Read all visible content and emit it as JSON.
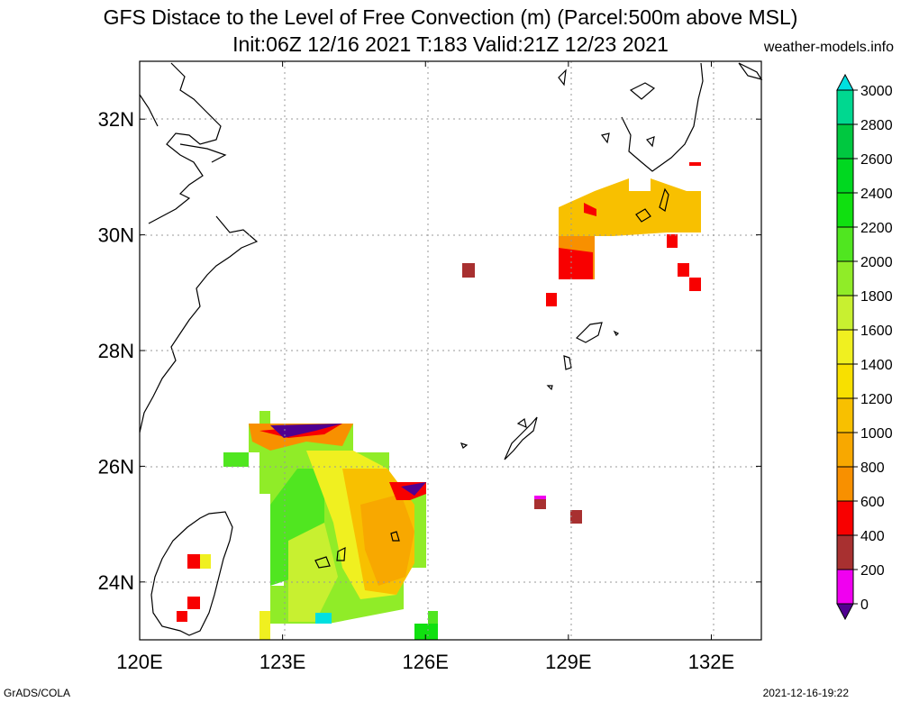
{
  "title": {
    "line1": "GFS Distace to the Level of Free Convection (m) (Parcel:500m above MSL)",
    "line2": "Init:06Z 12/16 2021 T:183 Valid:21Z 12/23 2021"
  },
  "site": "weather-models.info",
  "footer": {
    "left": "GrADS/COLA",
    "right": "2021-12-16-19:22"
  },
  "axes": {
    "lon_ticks": [
      {
        "value": 120,
        "label": "120E"
      },
      {
        "value": 123,
        "label": "123E"
      },
      {
        "value": 126,
        "label": "126E"
      },
      {
        "value": 129,
        "label": "129E"
      },
      {
        "value": 132,
        "label": "132E"
      }
    ],
    "lat_ticks": [
      {
        "value": 24,
        "label": "24N"
      },
      {
        "value": 26,
        "label": "26N"
      },
      {
        "value": 28,
        "label": "28N"
      },
      {
        "value": 30,
        "label": "30N"
      },
      {
        "value": 32,
        "label": "32N"
      }
    ]
  },
  "colorbar": {
    "levels": [
      {
        "label": "3000",
        "color": "#00e0e0"
      },
      {
        "label": "2800",
        "color": "#00d890"
      },
      {
        "label": "2600",
        "color": "#00c840"
      },
      {
        "label": "2400",
        "color": "#00d820"
      },
      {
        "label": "2200",
        "color": "#10e010"
      },
      {
        "label": "2000",
        "color": "#50e620"
      },
      {
        "label": "1800",
        "color": "#90ec28"
      },
      {
        "label": "1600",
        "color": "#c8f030"
      },
      {
        "label": "1400",
        "color": "#f0f020"
      },
      {
        "label": "1200",
        "color": "#f8e000"
      },
      {
        "label": "1000",
        "color": "#f8c000"
      },
      {
        "label": "800",
        "color": "#f8a800"
      },
      {
        "label": "600",
        "color": "#f89000"
      },
      {
        "label": "400",
        "color": "#f80000"
      },
      {
        "label": "200",
        "color": "#a83030"
      },
      {
        "label": "0",
        "color": "#f000f0"
      }
    ],
    "bottom_color": "#500090",
    "top_color": "#00e0e0"
  }
}
